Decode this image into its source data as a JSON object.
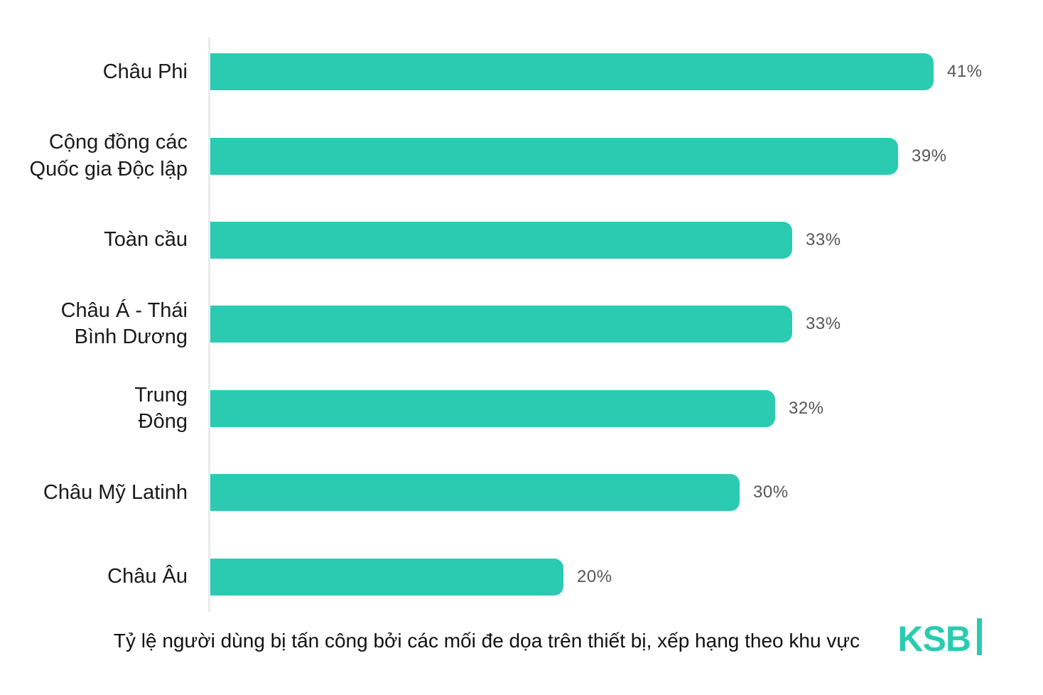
{
  "chart_data": {
    "type": "bar",
    "orientation": "horizontal",
    "title": "",
    "categories": [
      "Châu Phi",
      "Cộng đồng các Quốc gia Độc lập",
      "Toàn cầu",
      "Châu Á - Thái Bình Dương",
      "Trung Đông",
      "Châu Mỹ Latinh",
      "Châu Âu"
    ],
    "category_lines": [
      [
        "Châu Phi"
      ],
      [
        "Cộng đồng các",
        "Quốc gia Độc lập"
      ],
      [
        "Toàn cầu"
      ],
      [
        "Châu Á - Thái",
        "Bình Dương"
      ],
      [
        "Trung",
        "Đông"
      ],
      [
        "Châu Mỹ Latinh"
      ],
      [
        "Châu Âu"
      ]
    ],
    "values": [
      41,
      39,
      33,
      33,
      32,
      30,
      20
    ],
    "value_labels": [
      "41%",
      "39%",
      "33%",
      "33%",
      "32%",
      "30%",
      "20%"
    ],
    "unit": "%",
    "xlim": [
      0,
      47
    ],
    "grid": "off",
    "legend": "none",
    "bar_color": "#2ACBB1",
    "value_label_color": "#55565A",
    "category_label_color": "#1a1a1a",
    "axis_color": "#E9EBEE"
  },
  "caption": "Tỷ lệ người dùng bị tấn công bởi các mối đe dọa trên thiết bị, xếp hạng theo khu vực",
  "branding": {
    "logo_text": "KSB",
    "logo_color": "#2ACBB1"
  }
}
